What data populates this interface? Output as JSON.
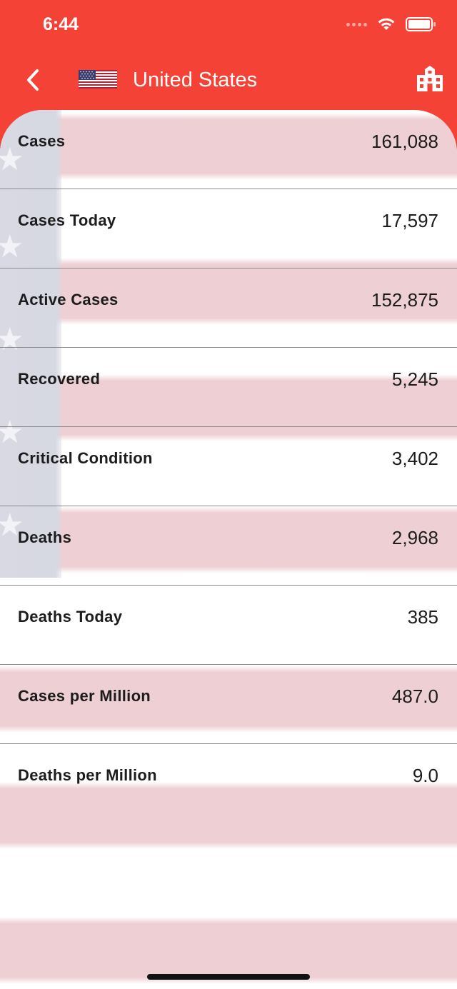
{
  "status_bar": {
    "time": "6:44"
  },
  "nav": {
    "title": "United States"
  },
  "stats": [
    {
      "label": "Cases",
      "value": "161,088"
    },
    {
      "label": "Cases Today",
      "value": "17,597"
    },
    {
      "label": "Active Cases",
      "value": "152,875"
    },
    {
      "label": "Recovered",
      "value": "5,245"
    },
    {
      "label": "Critical Condition",
      "value": "3,402"
    },
    {
      "label": "Deaths",
      "value": "2,968"
    },
    {
      "label": "Deaths Today",
      "value": "385"
    },
    {
      "label": "Cases per Million",
      "value": "487.0"
    },
    {
      "label": "Deaths per Million",
      "value": "9.0"
    }
  ],
  "colors": {
    "header": "#f54236",
    "stripe": "#eed0d4",
    "canton": "#d6d8e2"
  },
  "icons": [
    "back-chevron-icon",
    "us-flag-icon",
    "building-icon",
    "wifi-icon",
    "battery-icon"
  ]
}
